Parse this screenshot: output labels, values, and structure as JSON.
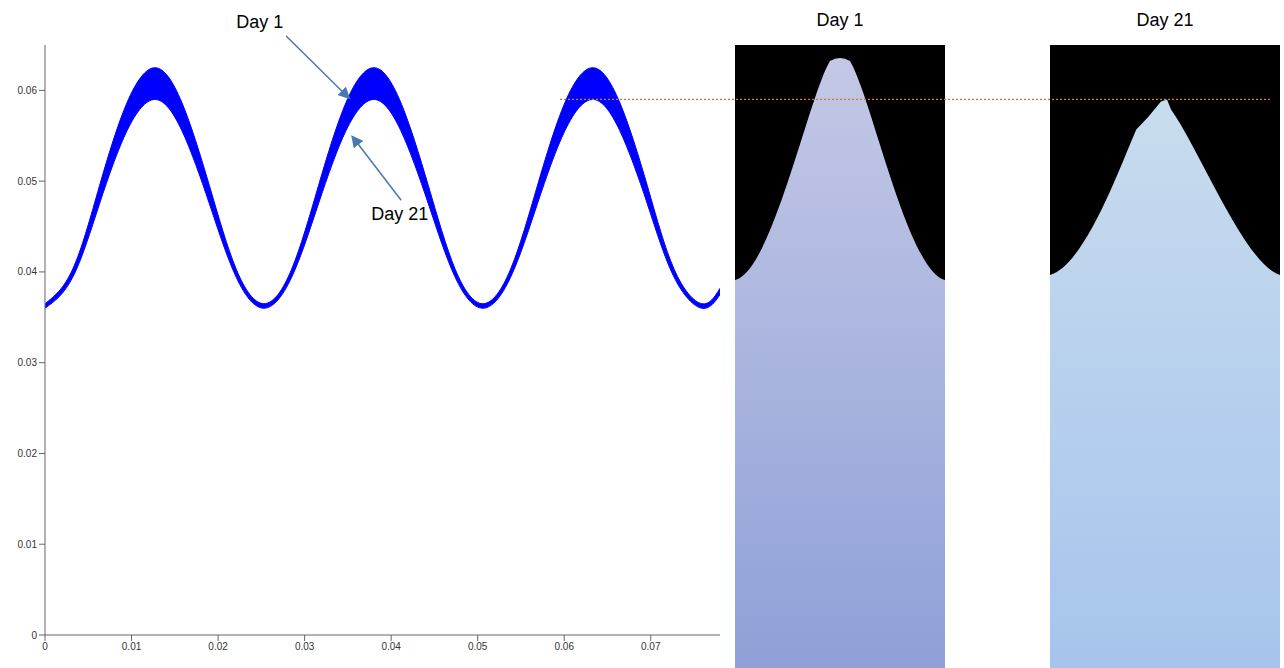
{
  "chart_data": {
    "type": "area",
    "x": [
      0,
      0.0032,
      0.0063,
      0.0095,
      0.0127,
      0.0158,
      0.019,
      0.0221,
      0.0253,
      0.0285,
      0.0316,
      0.0348,
      0.038,
      0.0411,
      0.0443,
      0.0474,
      0.0506,
      0.0538,
      0.0569,
      0.0601,
      0.0633,
      0.0664,
      0.0696,
      0.0727,
      0.0759,
      0.078
    ],
    "series": [
      {
        "name": "Day 1",
        "color": "#0000ff",
        "values": [
          0.0365,
          0.0403,
          0.0495,
          0.0587,
          0.0625,
          0.0587,
          0.0495,
          0.0403,
          0.0365,
          0.0403,
          0.0495,
          0.0587,
          0.0625,
          0.0587,
          0.0495,
          0.0403,
          0.0365,
          0.0403,
          0.0495,
          0.0587,
          0.0625,
          0.0587,
          0.0495,
          0.0403,
          0.0365,
          0.0382
        ]
      },
      {
        "name": "Day 21",
        "color": "#0000ff",
        "values": [
          0.036,
          0.0394,
          0.0475,
          0.0556,
          0.059,
          0.0556,
          0.0475,
          0.0394,
          0.036,
          0.0394,
          0.0475,
          0.0556,
          0.059,
          0.0556,
          0.0475,
          0.0394,
          0.036,
          0.0394,
          0.0475,
          0.0556,
          0.059,
          0.0556,
          0.0475,
          0.0394,
          0.036,
          0.0375
        ]
      }
    ],
    "xlim": [
      0,
      0.078
    ],
    "xticks": [
      0,
      0.01,
      0.02,
      0.03,
      0.04,
      0.05,
      0.06,
      0.07
    ],
    "ylim": [
      0,
      0.065
    ],
    "yticks": [
      0,
      0.01,
      0.02,
      0.03,
      0.04,
      0.05,
      0.06
    ],
    "grid": false
  },
  "photos": [
    {
      "title": "Day 1"
    },
    {
      "title": "Day 21"
    }
  ]
}
